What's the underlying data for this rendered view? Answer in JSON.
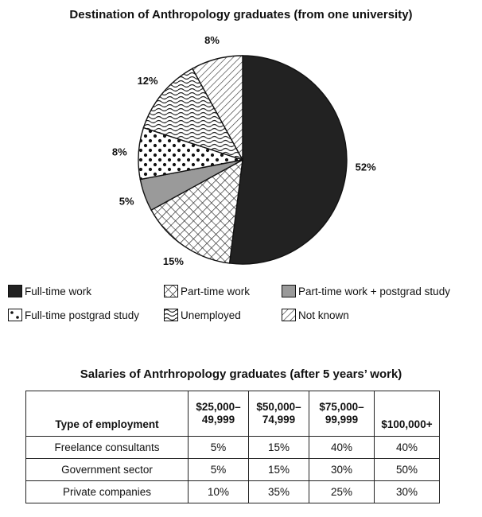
{
  "chart_data": [
    {
      "type": "pie",
      "title": "Destination of Anthropology graduates (from one university)",
      "slices": [
        {
          "label": "Full-time work",
          "value": 52,
          "value_label": "52%",
          "fill": "solid-dark"
        },
        {
          "label": "Part-time work",
          "value": 15,
          "value_label": "15%",
          "fill": "crosshatch"
        },
        {
          "label": "Part-time work + postgrad study",
          "value": 5,
          "value_label": "5%",
          "fill": "solid-grey"
        },
        {
          "label": "Full-time postgrad study",
          "value": 8,
          "value_label": "8%",
          "fill": "dots"
        },
        {
          "label": "Unemployed",
          "value": 12,
          "value_label": "12%",
          "fill": "wavy"
        },
        {
          "label": "Not known",
          "value": 8,
          "value_label": "8%",
          "fill": "diagonal"
        }
      ],
      "legend_placement": "bottom"
    },
    {
      "type": "table",
      "title": "Salaries of Antrhropology graduates (after 5 years’ work)",
      "columns": [
        {
          "line1": "Type of employment",
          "line2": ""
        },
        {
          "line1": "$25,000–",
          "line2": "49,999"
        },
        {
          "line1": "$50,000–",
          "line2": "74,999"
        },
        {
          "line1": "$75,000–",
          "line2": "99,999"
        },
        {
          "line1": "$100,000+",
          "line2": ""
        }
      ],
      "rows": [
        {
          "type": "Freelance consultants",
          "values": [
            "5%",
            "15%",
            "40%",
            "40%"
          ]
        },
        {
          "type": "Government sector",
          "values": [
            "5%",
            "15%",
            "30%",
            "50%"
          ]
        },
        {
          "type": "Private companies",
          "values": [
            "10%",
            "35%",
            "25%",
            "30%"
          ]
        }
      ]
    }
  ],
  "colors": {
    "dark": "#222222",
    "grey": "#9a9a9a",
    "line": "#111111"
  }
}
